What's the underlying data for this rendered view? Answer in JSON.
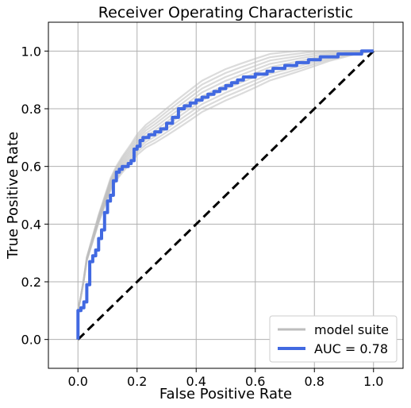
{
  "chart_data": {
    "type": "line",
    "title": "Receiver Operating Characteristic",
    "xlabel": "False Positive Rate",
    "ylabel": "True Positive Rate",
    "xlim": [
      -0.1,
      1.1
    ],
    "ylim": [
      -0.1,
      1.1
    ],
    "xticks": [
      "0.0",
      "0.2",
      "0.4",
      "0.6",
      "0.8",
      "1.0"
    ],
    "yticks": [
      "0.0",
      "0.2",
      "0.4",
      "0.6",
      "0.8",
      "1.0"
    ],
    "grid": true,
    "legend_position": "lower-right",
    "series": [
      {
        "name": "model suite",
        "color": "#bdbdbd",
        "x": [
          0.0,
          0.0,
          0.01,
          0.02,
          0.03,
          0.05,
          0.07,
          0.09,
          0.11,
          0.13,
          0.15,
          0.18,
          0.2,
          0.23,
          0.26,
          0.3,
          0.34,
          0.38,
          0.42,
          0.46,
          0.5,
          0.55,
          0.6,
          0.65,
          0.7,
          0.75,
          0.8,
          0.85,
          0.9,
          0.95,
          1.0
        ],
        "y": [
          0.0,
          0.1,
          0.15,
          0.21,
          0.28,
          0.35,
          0.42,
          0.48,
          0.54,
          0.58,
          0.61,
          0.65,
          0.68,
          0.71,
          0.73,
          0.76,
          0.79,
          0.82,
          0.85,
          0.87,
          0.89,
          0.91,
          0.93,
          0.95,
          0.96,
          0.97,
          0.98,
          0.99,
          0.995,
          1.0,
          1.0
        ]
      },
      {
        "name": "AUC = 0.78",
        "color": "#4169e1",
        "x": [
          0.0,
          0.0,
          0.01,
          0.02,
          0.03,
          0.04,
          0.05,
          0.06,
          0.07,
          0.08,
          0.09,
          0.1,
          0.11,
          0.12,
          0.13,
          0.14,
          0.15,
          0.16,
          0.17,
          0.18,
          0.19,
          0.2,
          0.21,
          0.22,
          0.24,
          0.26,
          0.28,
          0.3,
          0.32,
          0.34,
          0.36,
          0.38,
          0.4,
          0.42,
          0.44,
          0.46,
          0.48,
          0.5,
          0.52,
          0.54,
          0.56,
          0.58,
          0.6,
          0.62,
          0.64,
          0.66,
          0.68,
          0.7,
          0.72,
          0.74,
          0.76,
          0.78,
          0.8,
          0.82,
          0.84,
          0.86,
          0.88,
          0.9,
          0.92,
          0.94,
          0.96,
          0.98,
          1.0
        ],
        "y": [
          0.0,
          0.1,
          0.11,
          0.13,
          0.19,
          0.27,
          0.29,
          0.31,
          0.35,
          0.38,
          0.44,
          0.48,
          0.5,
          0.55,
          0.58,
          0.59,
          0.6,
          0.6,
          0.61,
          0.62,
          0.66,
          0.67,
          0.69,
          0.7,
          0.71,
          0.72,
          0.73,
          0.75,
          0.77,
          0.8,
          0.81,
          0.82,
          0.83,
          0.84,
          0.85,
          0.86,
          0.87,
          0.88,
          0.89,
          0.9,
          0.91,
          0.91,
          0.92,
          0.92,
          0.93,
          0.94,
          0.94,
          0.95,
          0.95,
          0.96,
          0.96,
          0.97,
          0.97,
          0.98,
          0.98,
          0.98,
          0.99,
          0.99,
          0.99,
          0.99,
          1.0,
          1.0,
          1.0
        ]
      },
      {
        "name": "",
        "color": "#000000",
        "style": "dashed",
        "x": [
          0.0,
          1.0
        ],
        "y": [
          0.0,
          1.0
        ]
      }
    ]
  }
}
